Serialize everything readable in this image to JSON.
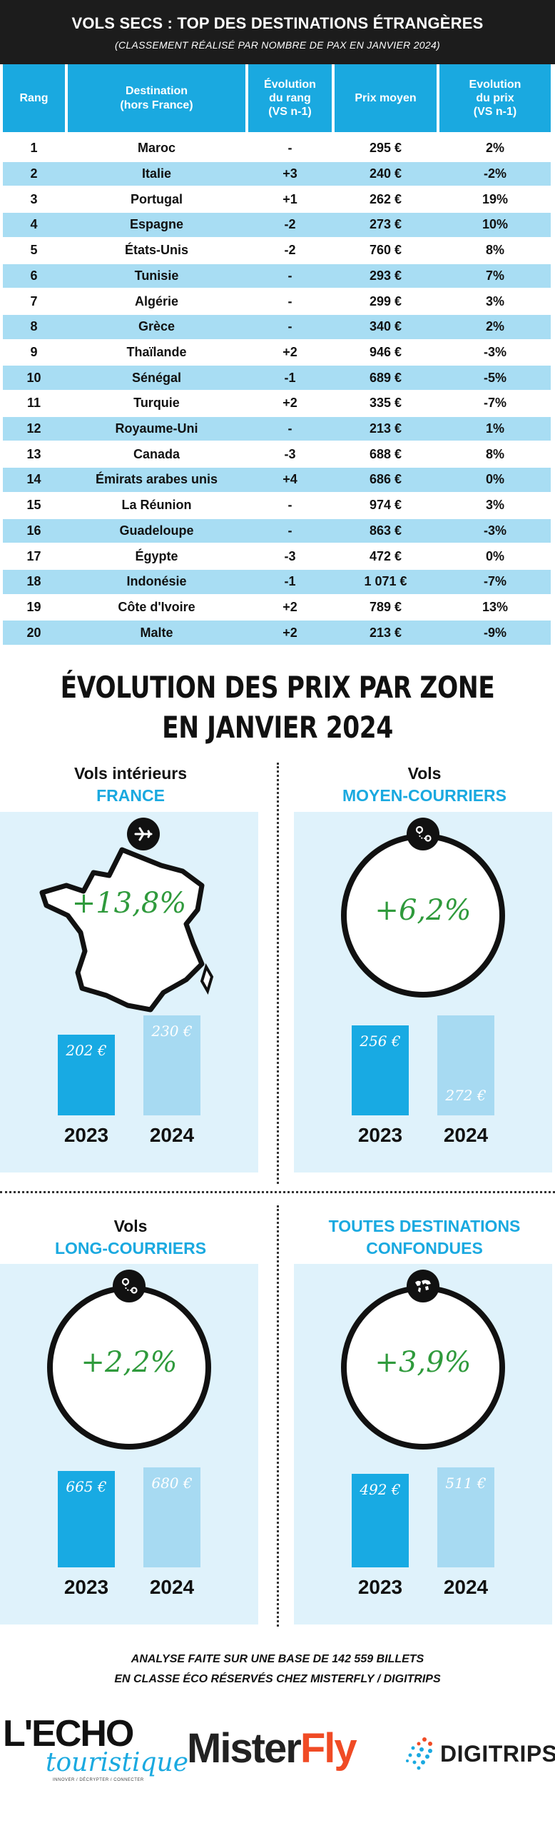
{
  "header": {
    "title": "VOLS SECS : TOP DES DESTINATIONS ÉTRANGÈRES",
    "subtitle": "(CLASSEMENT RÉALISÉ PAR NOMBRE DE PAX EN JANVIER 2024)"
  },
  "table": {
    "columns": [
      "Rang",
      "Destination\n(hors France)",
      "Évolution\ndu rang\n(VS n-1)",
      "Prix moyen",
      "Evolution\ndu prix\n(VS n-1)"
    ],
    "rows": [
      [
        "1",
        "Maroc",
        "-",
        "295 €",
        "2%"
      ],
      [
        "2",
        "Italie",
        "+3",
        "240 €",
        "-2%"
      ],
      [
        "3",
        "Portugal",
        "+1",
        "262 €",
        "19%"
      ],
      [
        "4",
        "Espagne",
        "-2",
        "273 €",
        "10%"
      ],
      [
        "5",
        "États-Unis",
        "-2",
        "760 €",
        "8%"
      ],
      [
        "6",
        "Tunisie",
        "-",
        "293 €",
        "7%"
      ],
      [
        "7",
        "Algérie",
        "-",
        "299 €",
        "3%"
      ],
      [
        "8",
        "Grèce",
        "-",
        "340 €",
        "2%"
      ],
      [
        "9",
        "Thaïlande",
        "+2",
        "946 €",
        "-3%"
      ],
      [
        "10",
        "Sénégal",
        "-1",
        "689 €",
        "-5%"
      ],
      [
        "11",
        "Turquie",
        "+2",
        "335 €",
        "-7%"
      ],
      [
        "12",
        "Royaume-Uni",
        "-",
        "213 €",
        "1%"
      ],
      [
        "13",
        "Canada",
        "-3",
        "688 €",
        "8%"
      ],
      [
        "14",
        "Émirats arabes unis",
        "+4",
        "686 €",
        "0%"
      ],
      [
        "15",
        "La Réunion",
        "-",
        "974 €",
        "3%"
      ],
      [
        "16",
        "Guadeloupe",
        "-",
        "863 €",
        "-3%"
      ],
      [
        "17",
        "Égypte",
        "-3",
        "472 €",
        "0%"
      ],
      [
        "18",
        "Indonésie",
        "-1",
        "1 071 €",
        "-7%"
      ],
      [
        "19",
        "Côte d'Ivoire",
        "+2",
        "789 €",
        "13%"
      ],
      [
        "20",
        "Malte",
        "+2",
        "213 €",
        "-9%"
      ]
    ]
  },
  "section": {
    "title_line1": "ÉVOLUTION DES PRIX PAR ZONE",
    "title_line2": "EN JANVIER 2024"
  },
  "chart_data": [
    {
      "type": "bar",
      "label_line1": "Vols intérieurs",
      "label_line2": "FRANCE",
      "icon": "airplane-icon",
      "change": "+13,8%",
      "categories": [
        "2023",
        "2024"
      ],
      "values": [
        202,
        230
      ],
      "value_labels": [
        "202 €",
        "230 €"
      ]
    },
    {
      "type": "bar",
      "label_line1": "Vols",
      "label_line2": "MOYEN-COURRIERS",
      "icon": "route-pin-icon",
      "change": "+6,2%",
      "categories": [
        "2023",
        "2024"
      ],
      "values": [
        256,
        272
      ],
      "value_labels": [
        "256 €",
        "272 €"
      ]
    },
    {
      "type": "bar",
      "label_line1": "Vols",
      "label_line2": "LONG-COURRIERS",
      "icon": "route-pin-icon",
      "change": "+2,2%",
      "categories": [
        "2023",
        "2024"
      ],
      "values": [
        665,
        680
      ],
      "value_labels": [
        "665 €",
        "680 €"
      ]
    },
    {
      "type": "bar",
      "label_line1": "",
      "label_line2": "TOUTES DESTINATIONS\nCONFONDUES",
      "icon": "world-map-icon",
      "change": "+3,9%",
      "categories": [
        "2023",
        "2024"
      ],
      "values": [
        492,
        511
      ],
      "value_labels": [
        "492 €",
        "511 €"
      ]
    }
  ],
  "footer": {
    "note_line1": "ANALYSE FAITE SUR UNE BASE DE 142 559 BILLETS",
    "note_line2": "EN CLASSE ÉCO RÉSERVÉS CHEZ MISTERFLY / DIGITRIPS",
    "logos": {
      "echo_main": "L'ECHO",
      "echo_script": "touristique",
      "echo_tagline": "INNOVER / DÉCRYPTER / CONNECTER",
      "misterfly_a": "Mister",
      "misterfly_b": "Fly",
      "digitrips": "DIGITRIPS"
    }
  },
  "colors": {
    "accent": "#1aa9e0",
    "row_alt": "#a8ddf3",
    "panel_bg": "#dff2fb",
    "bar_2023": "#18aae3",
    "bar_2024": "#a7daf2",
    "change": "#2f9a3c",
    "header_bg": "#1c1c1c"
  }
}
